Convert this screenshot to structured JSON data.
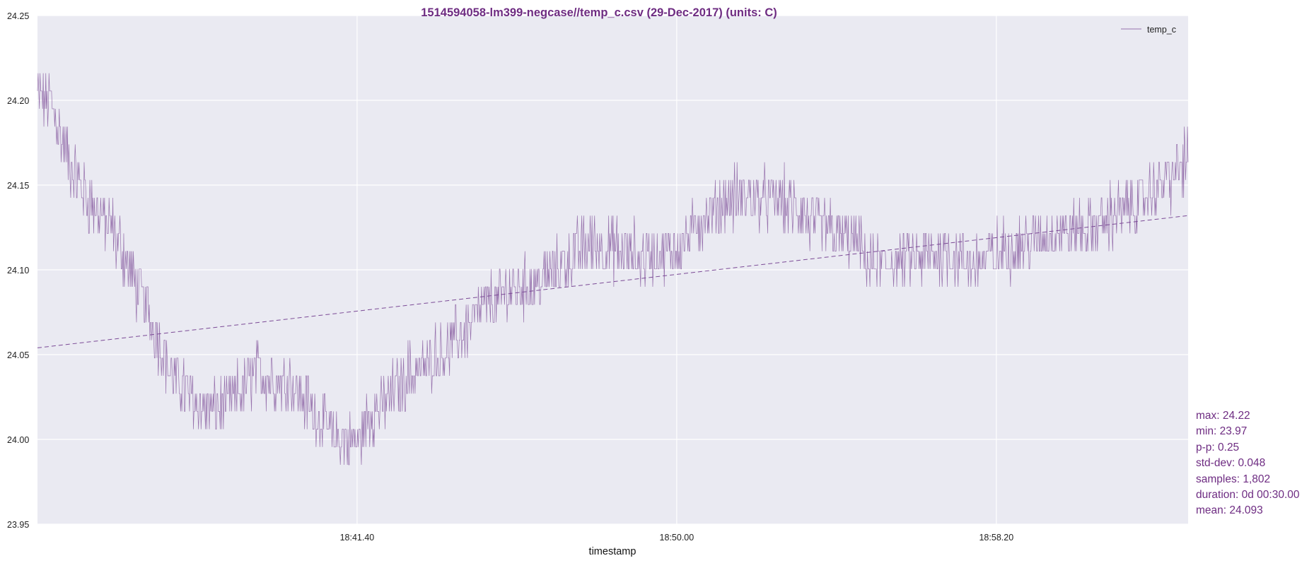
{
  "chart_data": {
    "type": "line",
    "title": "1514594058-lm399-negcase//temp_c.csv (29-Dec-2017) (units: C)",
    "xlabel": "timestamp",
    "ylabel": "",
    "ylim": [
      23.95,
      24.25
    ],
    "yticks": [
      "24.25",
      "24.20",
      "24.15",
      "24.10",
      "24.05",
      "24.00",
      "23.95"
    ],
    "xrange_seconds_from_start": [
      0,
      1800
    ],
    "xticks": [
      {
        "label": "18:41.40",
        "seconds_from_start": 500
      },
      {
        "label": "18:50.00",
        "seconds_from_start": 1000
      },
      {
        "label": "18:58.20",
        "seconds_from_start": 1500
      }
    ],
    "grid": true,
    "legend_position": "top-right",
    "series": [
      {
        "name": "temp_c",
        "style": "solid",
        "keypoints_seconds": [
          0,
          20,
          50,
          80,
          120,
          170,
          210,
          260,
          300,
          340,
          400,
          440,
          470,
          500,
          520,
          580,
          640,
          700,
          740,
          790,
          820,
          860,
          900,
          950,
          1000,
          1040,
          1080,
          1120,
          1160,
          1200,
          1240,
          1280,
          1300,
          1340,
          1380,
          1420,
          1460,
          1520,
          1560,
          1600,
          1640,
          1680,
          1720,
          1760,
          1800
        ],
        "keypoints_values": [
          24.2,
          24.195,
          24.16,
          24.138,
          24.118,
          24.075,
          24.035,
          24.015,
          24.018,
          24.036,
          24.03,
          24.01,
          23.996,
          23.995,
          24.01,
          24.035,
          24.05,
          24.075,
          24.085,
          24.09,
          24.1,
          24.112,
          24.11,
          24.105,
          24.108,
          24.128,
          24.138,
          24.14,
          24.138,
          24.128,
          24.12,
          24.114,
          24.1,
          24.102,
          24.104,
          24.108,
          24.1,
          24.11,
          24.115,
          24.12,
          24.122,
          24.128,
          24.138,
          24.148,
          24.162
        ]
      },
      {
        "name": "trend",
        "style": "dashed",
        "x_seconds": [
          0,
          1800
        ],
        "values": [
          24.054,
          24.132
        ]
      }
    ],
    "colors": {
      "line": "#7b4a96",
      "text": "#6e2c82",
      "background": "#eaeaf2",
      "grid": "#ffffff"
    }
  },
  "stats": [
    "max: 24.22",
    "min: 23.97",
    "p-p: 0.25",
    "std-dev: 0.048",
    "samples: 1,802",
    "duration: 0d 00:30.00",
    "mean: 24.093"
  ]
}
